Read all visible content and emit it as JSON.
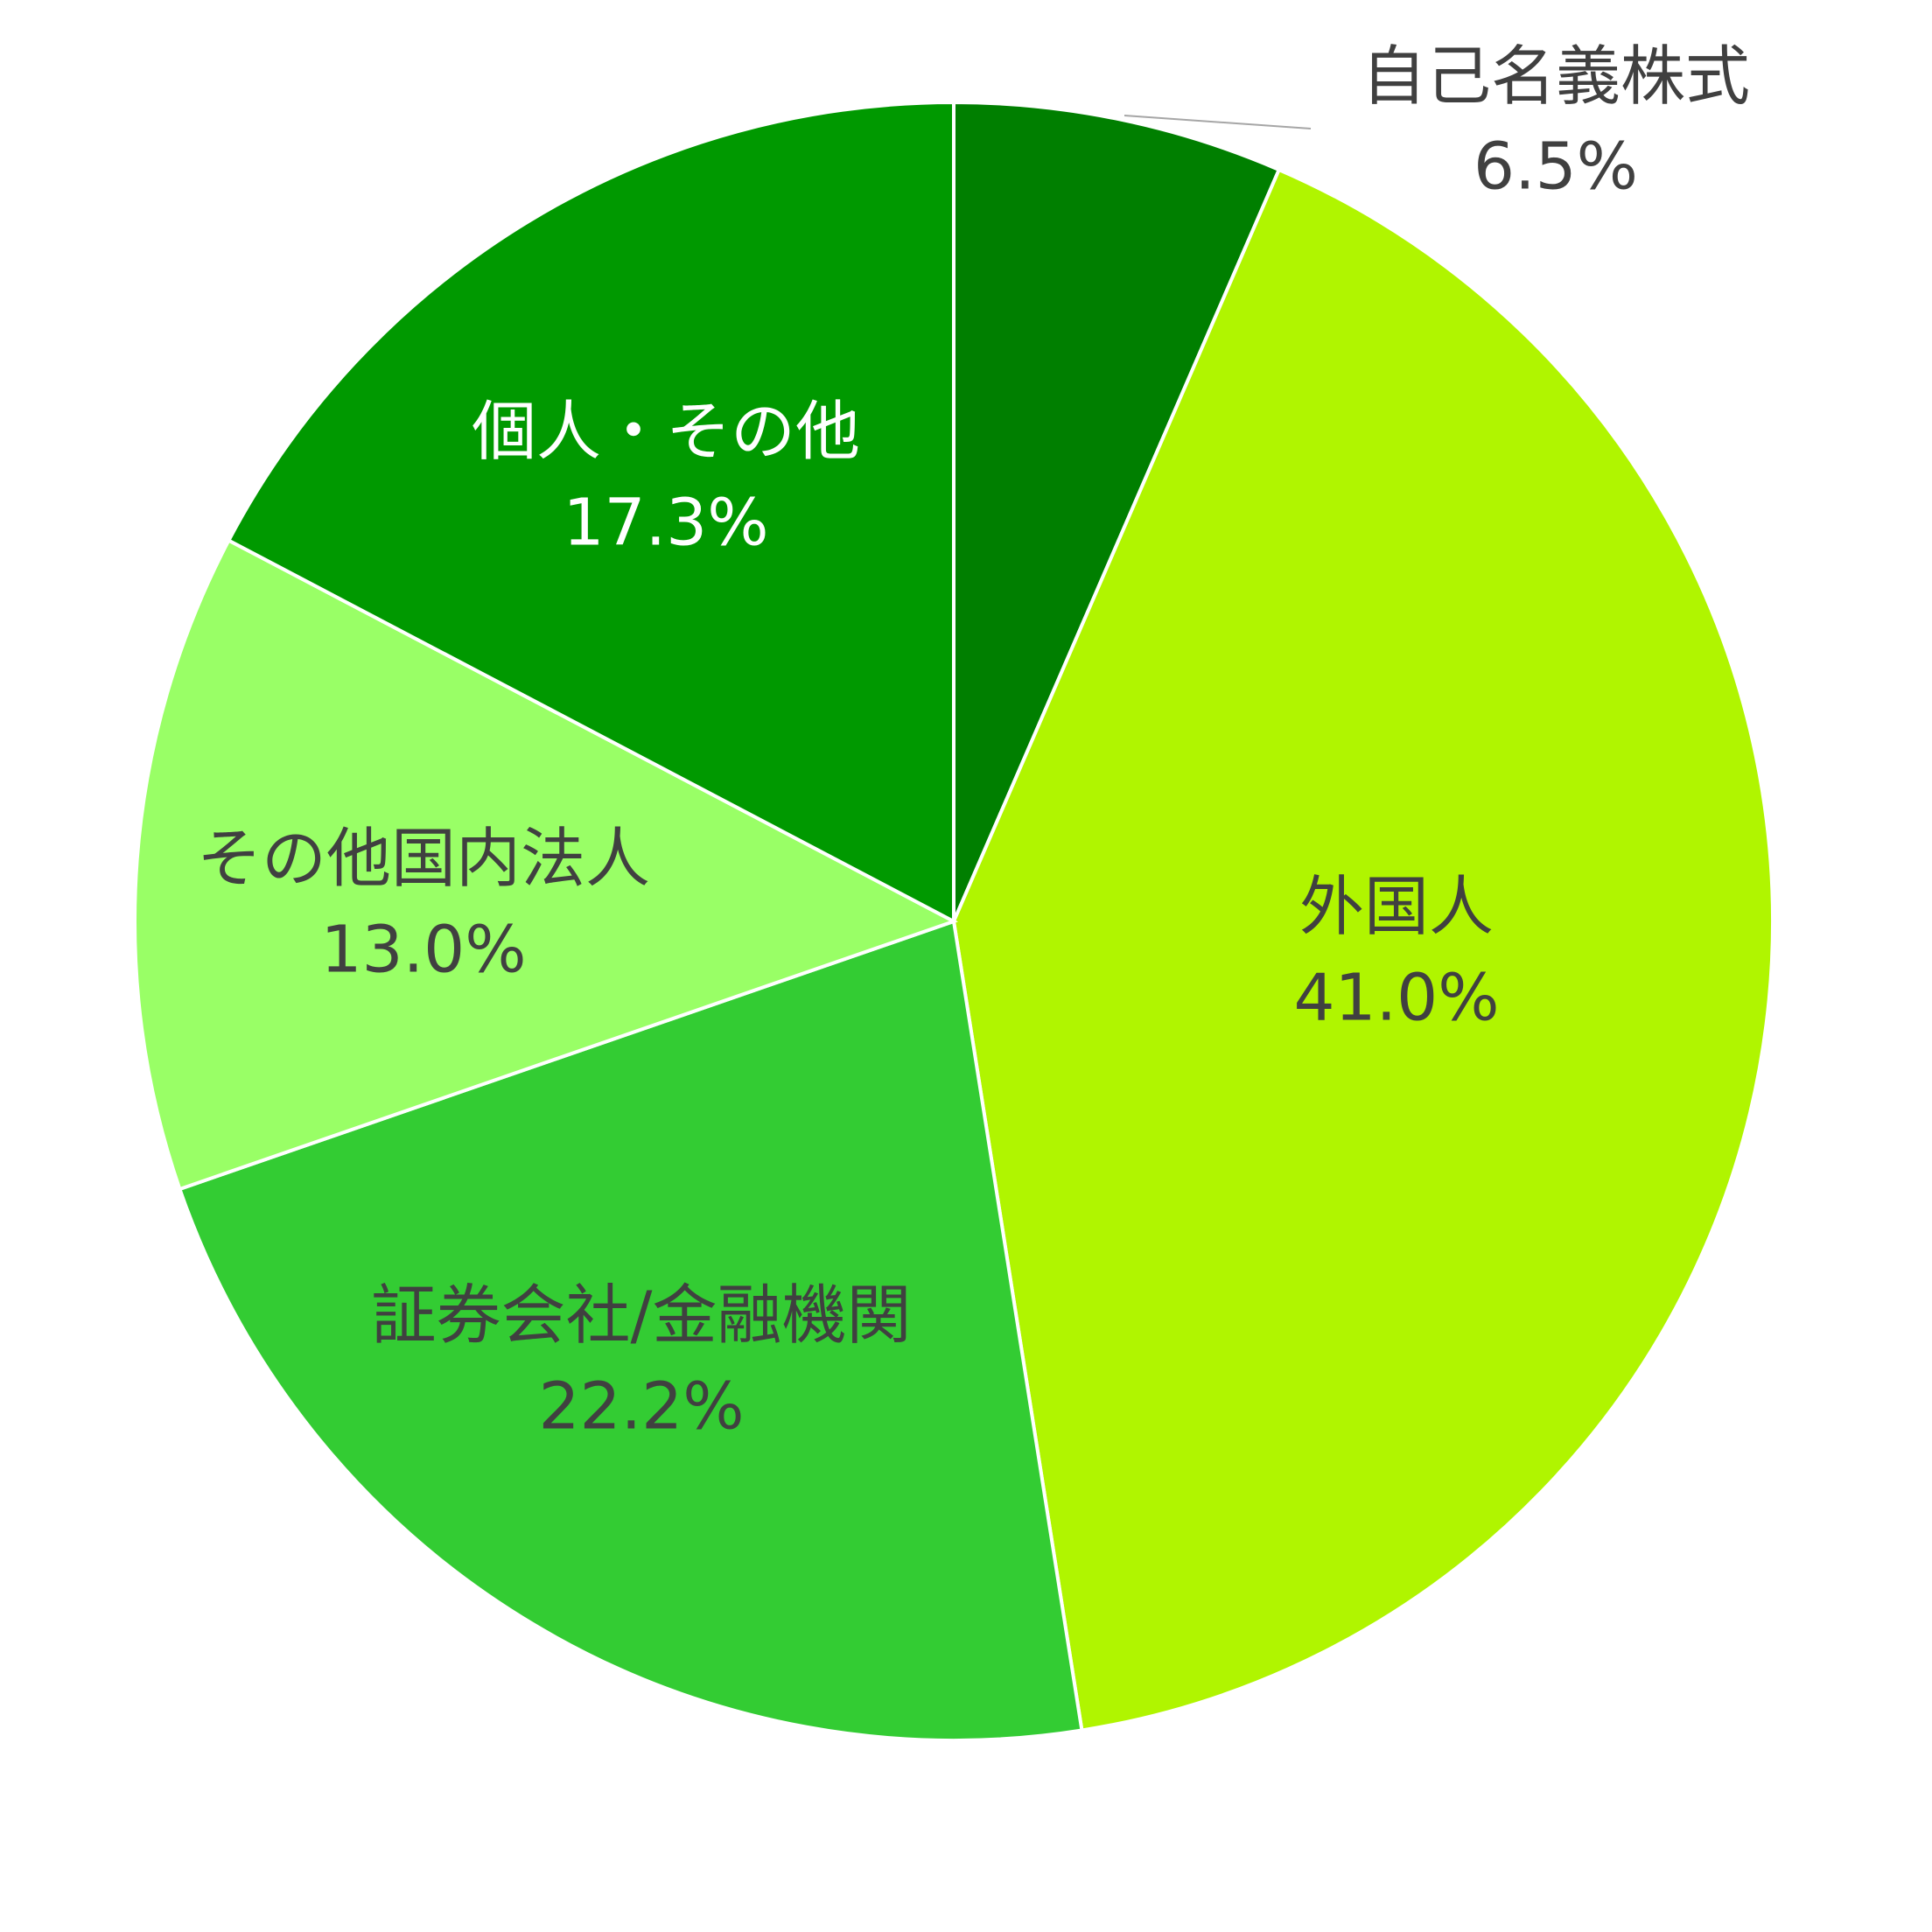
{
  "chart_data": {
    "type": "pie",
    "categories": [
      "自己名義株式",
      "外国人",
      "証券会社/金融機関",
      "その他国内法人",
      "個人・その他"
    ],
    "values": [
      6.5,
      41.0,
      22.2,
      13.0,
      17.3
    ],
    "value_labels": [
      "6.5%",
      "41.0%",
      "22.2%",
      "13.0%",
      "17.3%"
    ],
    "colors": [
      "#007f00",
      "#b0f500",
      "#33cc33",
      "#99ff66",
      "#009900"
    ]
  }
}
